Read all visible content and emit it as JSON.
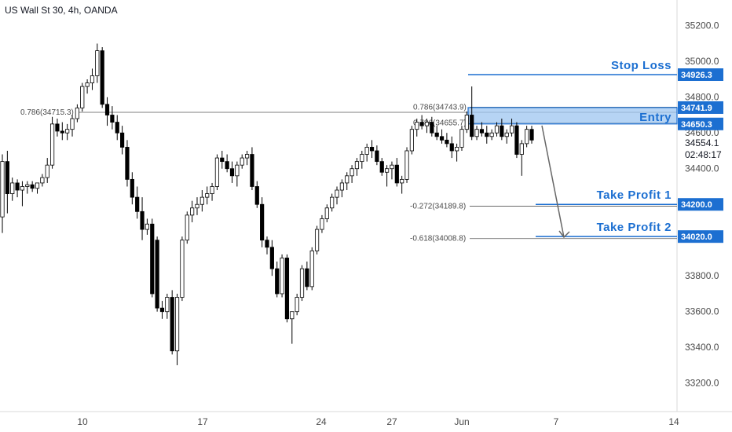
{
  "header": {
    "title": "US Wall St 30, 4h, OANDA"
  },
  "chart_data": {
    "type": "candlestick",
    "title": "US Wall St 30, 4h, OANDA",
    "ylim": [
      33080,
      35300
    ],
    "y_ticks": [
      "35200.0",
      "35000.0",
      "34800.0",
      "34600.0",
      "34400.0",
      "33800.0",
      "33600.0",
      "33400.0",
      "33200.0"
    ],
    "x_ticks": [
      "10",
      "17",
      "24",
      "27",
      "Jun",
      "7",
      "14"
    ],
    "last_price": {
      "value": "34554.1",
      "countdown": "02:48:17"
    },
    "candles_ohlc": [
      [
        34130,
        34480,
        34040,
        34440
      ],
      [
        34440,
        34500,
        34150,
        34260
      ],
      [
        34260,
        34350,
        34220,
        34320
      ],
      [
        34320,
        34340,
        34240,
        34280
      ],
      [
        34280,
        34330,
        34190,
        34300
      ],
      [
        34300,
        34330,
        34260,
        34310
      ],
      [
        34310,
        34330,
        34270,
        34290
      ],
      [
        34290,
        34320,
        34260,
        34320
      ],
      [
        34320,
        34370,
        34300,
        34350
      ],
      [
        34350,
        34460,
        34320,
        34420
      ],
      [
        34420,
        34690,
        34400,
        34650
      ],
      [
        34650,
        34680,
        34580,
        34610
      ],
      [
        34610,
        34660,
        34560,
        34600
      ],
      [
        34600,
        34650,
        34560,
        34620
      ],
      [
        34620,
        34700,
        34580,
        34680
      ],
      [
        34680,
        34760,
        34660,
        34740
      ],
      [
        34740,
        34880,
        34720,
        34860
      ],
      [
        34860,
        34900,
        34820,
        34880
      ],
      [
        34880,
        34960,
        34840,
        34920
      ],
      [
        34920,
        35100,
        34880,
        35060
      ],
      [
        35060,
        35080,
        34740,
        34760
      ],
      [
        34760,
        34800,
        34640,
        34700
      ],
      [
        34700,
        34750,
        34620,
        34660
      ],
      [
        34660,
        34700,
        34560,
        34600
      ],
      [
        34600,
        34640,
        34480,
        34520
      ],
      [
        34520,
        34560,
        34300,
        34340
      ],
      [
        34340,
        34380,
        34200,
        34240
      ],
      [
        34240,
        34300,
        34120,
        34160
      ],
      [
        34160,
        34240,
        34000,
        34060
      ],
      [
        34060,
        34120,
        34030,
        34090
      ],
      [
        34090,
        34120,
        33680,
        33700
      ],
      [
        34000,
        34020,
        33600,
        33620
      ],
      [
        33620,
        33660,
        33560,
        33600
      ],
      [
        33600,
        33700,
        33560,
        33680
      ],
      [
        33680,
        33720,
        33360,
        33380
      ],
      [
        33380,
        33700,
        33300,
        33680
      ],
      [
        33680,
        34020,
        33660,
        34000
      ],
      [
        34000,
        34160,
        33980,
        34140
      ],
      [
        34140,
        34220,
        34100,
        34180
      ],
      [
        34180,
        34240,
        34140,
        34200
      ],
      [
        34200,
        34280,
        34160,
        34240
      ],
      [
        34240,
        34300,
        34200,
        34260
      ],
      [
        34260,
        34320,
        34220,
        34300
      ],
      [
        34300,
        34480,
        34280,
        34460
      ],
      [
        34460,
        34500,
        34400,
        34440
      ],
      [
        34440,
        34480,
        34380,
        34400
      ],
      [
        34400,
        34440,
        34320,
        34360
      ],
      [
        34360,
        34440,
        34300,
        34420
      ],
      [
        34420,
        34480,
        34400,
        34460
      ],
      [
        34460,
        34500,
        34420,
        34480
      ],
      [
        34480,
        34520,
        34280,
        34300
      ],
      [
        34300,
        34330,
        34180,
        34200
      ],
      [
        34200,
        34240,
        33960,
        34000
      ],
      [
        34000,
        34020,
        33920,
        33960
      ],
      [
        33960,
        34000,
        33800,
        33840
      ],
      [
        33840,
        33880,
        33680,
        33700
      ],
      [
        33700,
        33920,
        33680,
        33900
      ],
      [
        33900,
        33920,
        33540,
        33560
      ],
      [
        33560,
        33580,
        33420,
        33600
      ],
      [
        33600,
        33700,
        33580,
        33680
      ],
      [
        33680,
        33860,
        33660,
        33840
      ],
      [
        33840,
        33880,
        33720,
        33740
      ],
      [
        33740,
        33960,
        33720,
        33940
      ],
      [
        33940,
        34080,
        33920,
        34060
      ],
      [
        34060,
        34140,
        34040,
        34120
      ],
      [
        34120,
        34200,
        34100,
        34180
      ],
      [
        34180,
        34260,
        34160,
        34240
      ],
      [
        34240,
        34300,
        34200,
        34280
      ],
      [
        34280,
        34340,
        34240,
        34320
      ],
      [
        34320,
        34380,
        34280,
        34360
      ],
      [
        34360,
        34420,
        34320,
        34400
      ],
      [
        34400,
        34460,
        34360,
        34440
      ],
      [
        34440,
        34500,
        34400,
        34480
      ],
      [
        34480,
        34540,
        34440,
        34520
      ],
      [
        34520,
        34560,
        34460,
        34500
      ],
      [
        34500,
        34530,
        34420,
        34440
      ],
      [
        34440,
        34460,
        34360,
        34380
      ],
      [
        34380,
        34420,
        34300,
        34400
      ],
      [
        34400,
        34440,
        34340,
        34420
      ],
      [
        34420,
        34460,
        34300,
        34320
      ],
      [
        34320,
        34360,
        34260,
        34340
      ],
      [
        34340,
        34520,
        34320,
        34500
      ],
      [
        34500,
        34640,
        34480,
        34620
      ],
      [
        34620,
        34680,
        34580,
        34660
      ],
      [
        34660,
        34700,
        34620,
        34640
      ],
      [
        34640,
        34680,
        34600,
        34660
      ],
      [
        34660,
        34690,
        34580,
        34600
      ],
      [
        34600,
        34640,
        34560,
        34580
      ],
      [
        34580,
        34620,
        34540,
        34560
      ],
      [
        34560,
        34600,
        34520,
        34540
      ],
      [
        34540,
        34580,
        34460,
        34500
      ],
      [
        34500,
        34540,
        34440,
        34520
      ],
      [
        34520,
        34640,
        34500,
        34620
      ],
      [
        34620,
        34720,
        34600,
        34700
      ],
      [
        34700,
        34860,
        34560,
        34580
      ],
      [
        34580,
        34640,
        34560,
        34620
      ],
      [
        34620,
        34660,
        34580,
        34600
      ],
      [
        34600,
        34640,
        34540,
        34580
      ],
      [
        34580,
        34620,
        34560,
        34600
      ],
      [
        34600,
        34660,
        34580,
        34640
      ],
      [
        34640,
        34680,
        34560,
        34580
      ],
      [
        34580,
        34620,
        34540,
        34600
      ],
      [
        34600,
        34680,
        34580,
        34640
      ],
      [
        34640,
        34660,
        34460,
        34480
      ],
      [
        34480,
        34560,
        34360,
        34540
      ],
      [
        34540,
        34640,
        34520,
        34620
      ],
      [
        34620,
        34640,
        34540,
        34560
      ]
    ],
    "annotations": [
      {
        "label": "Stop Loss",
        "price": 34926.3,
        "tag": "34926.3",
        "color": "#1c6fd1"
      },
      {
        "label": "Entry",
        "tag_top": "34741.9",
        "tag_bottom": "34650.3",
        "zone": [
          34650.3,
          34741.9
        ],
        "color": "#1c6fd1"
      },
      {
        "label": "Take Profit 1",
        "price": 34200.0,
        "tag": "34200.0",
        "color": "#1c6fd1"
      },
      {
        "label": "Take Profit 2",
        "price": 34020.0,
        "tag": "34020.0",
        "color": "#1c6fd1"
      }
    ],
    "fib_levels": [
      {
        "text": "0.786(34715.3)",
        "price": 34715.3
      },
      {
        "text": "0.786(34743.9)",
        "price": 34743.9
      },
      {
        "text": "0.786(34655.7)",
        "price": 34655.7
      },
      {
        "text": "-0.272(34189.8)",
        "price": 34189.8
      },
      {
        "text": "-0.618(34008.8)",
        "price": 34008.8
      }
    ],
    "colors": {
      "candle": "#000000",
      "accent": "#1c6fd1",
      "zone_fill": "#9ec5f0",
      "axis_text": "#4a4a4a",
      "fib_line": "#555555"
    },
    "grid": false,
    "arrow": "down, from entry zone to take profit 2"
  }
}
